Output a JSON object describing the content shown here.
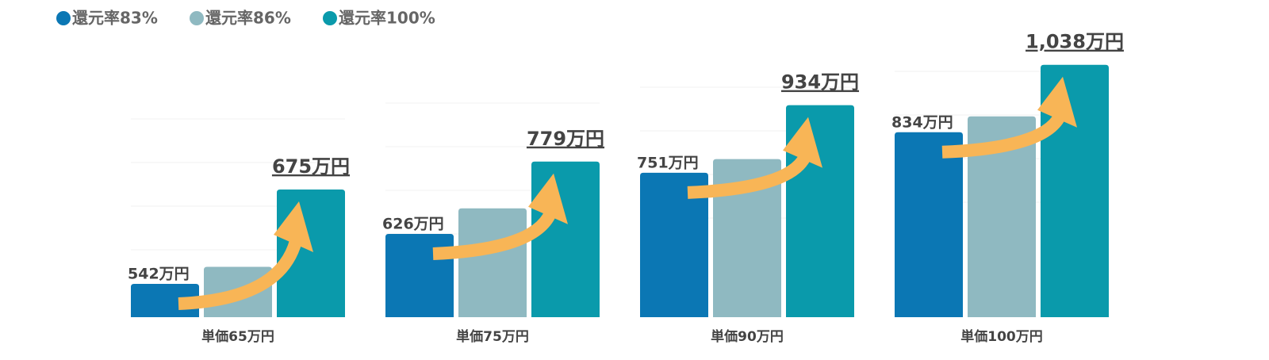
{
  "chart_data": {
    "type": "bar",
    "categories": [
      "単価65万円",
      "単価75万円",
      "単価90万円",
      "単価100万円"
    ],
    "series": [
      {
        "name": "還元率83%",
        "color": "#0b77b4",
        "values": [
          542,
          626,
          751,
          834
        ],
        "value_labels": [
          "542万円",
          "626万円",
          "751万円",
          "834万円"
        ]
      },
      {
        "name": "還元率86%",
        "color": "#8fb9c1",
        "values": [
          566,
          680,
          788,
          882
        ]
      },
      {
        "name": "還元率100%",
        "color": "#0a9aab",
        "values": [
          675,
          779,
          934,
          1038
        ],
        "value_labels": [
          "675万円",
          "779万円",
          "934万円",
          "1,038万円"
        ]
      }
    ],
    "ylim": [
      [
        495,
        875
      ],
      [
        450,
        1020
      ],
      [
        360,
        1090
      ],
      [
        275,
        1090
      ]
    ]
  }
}
